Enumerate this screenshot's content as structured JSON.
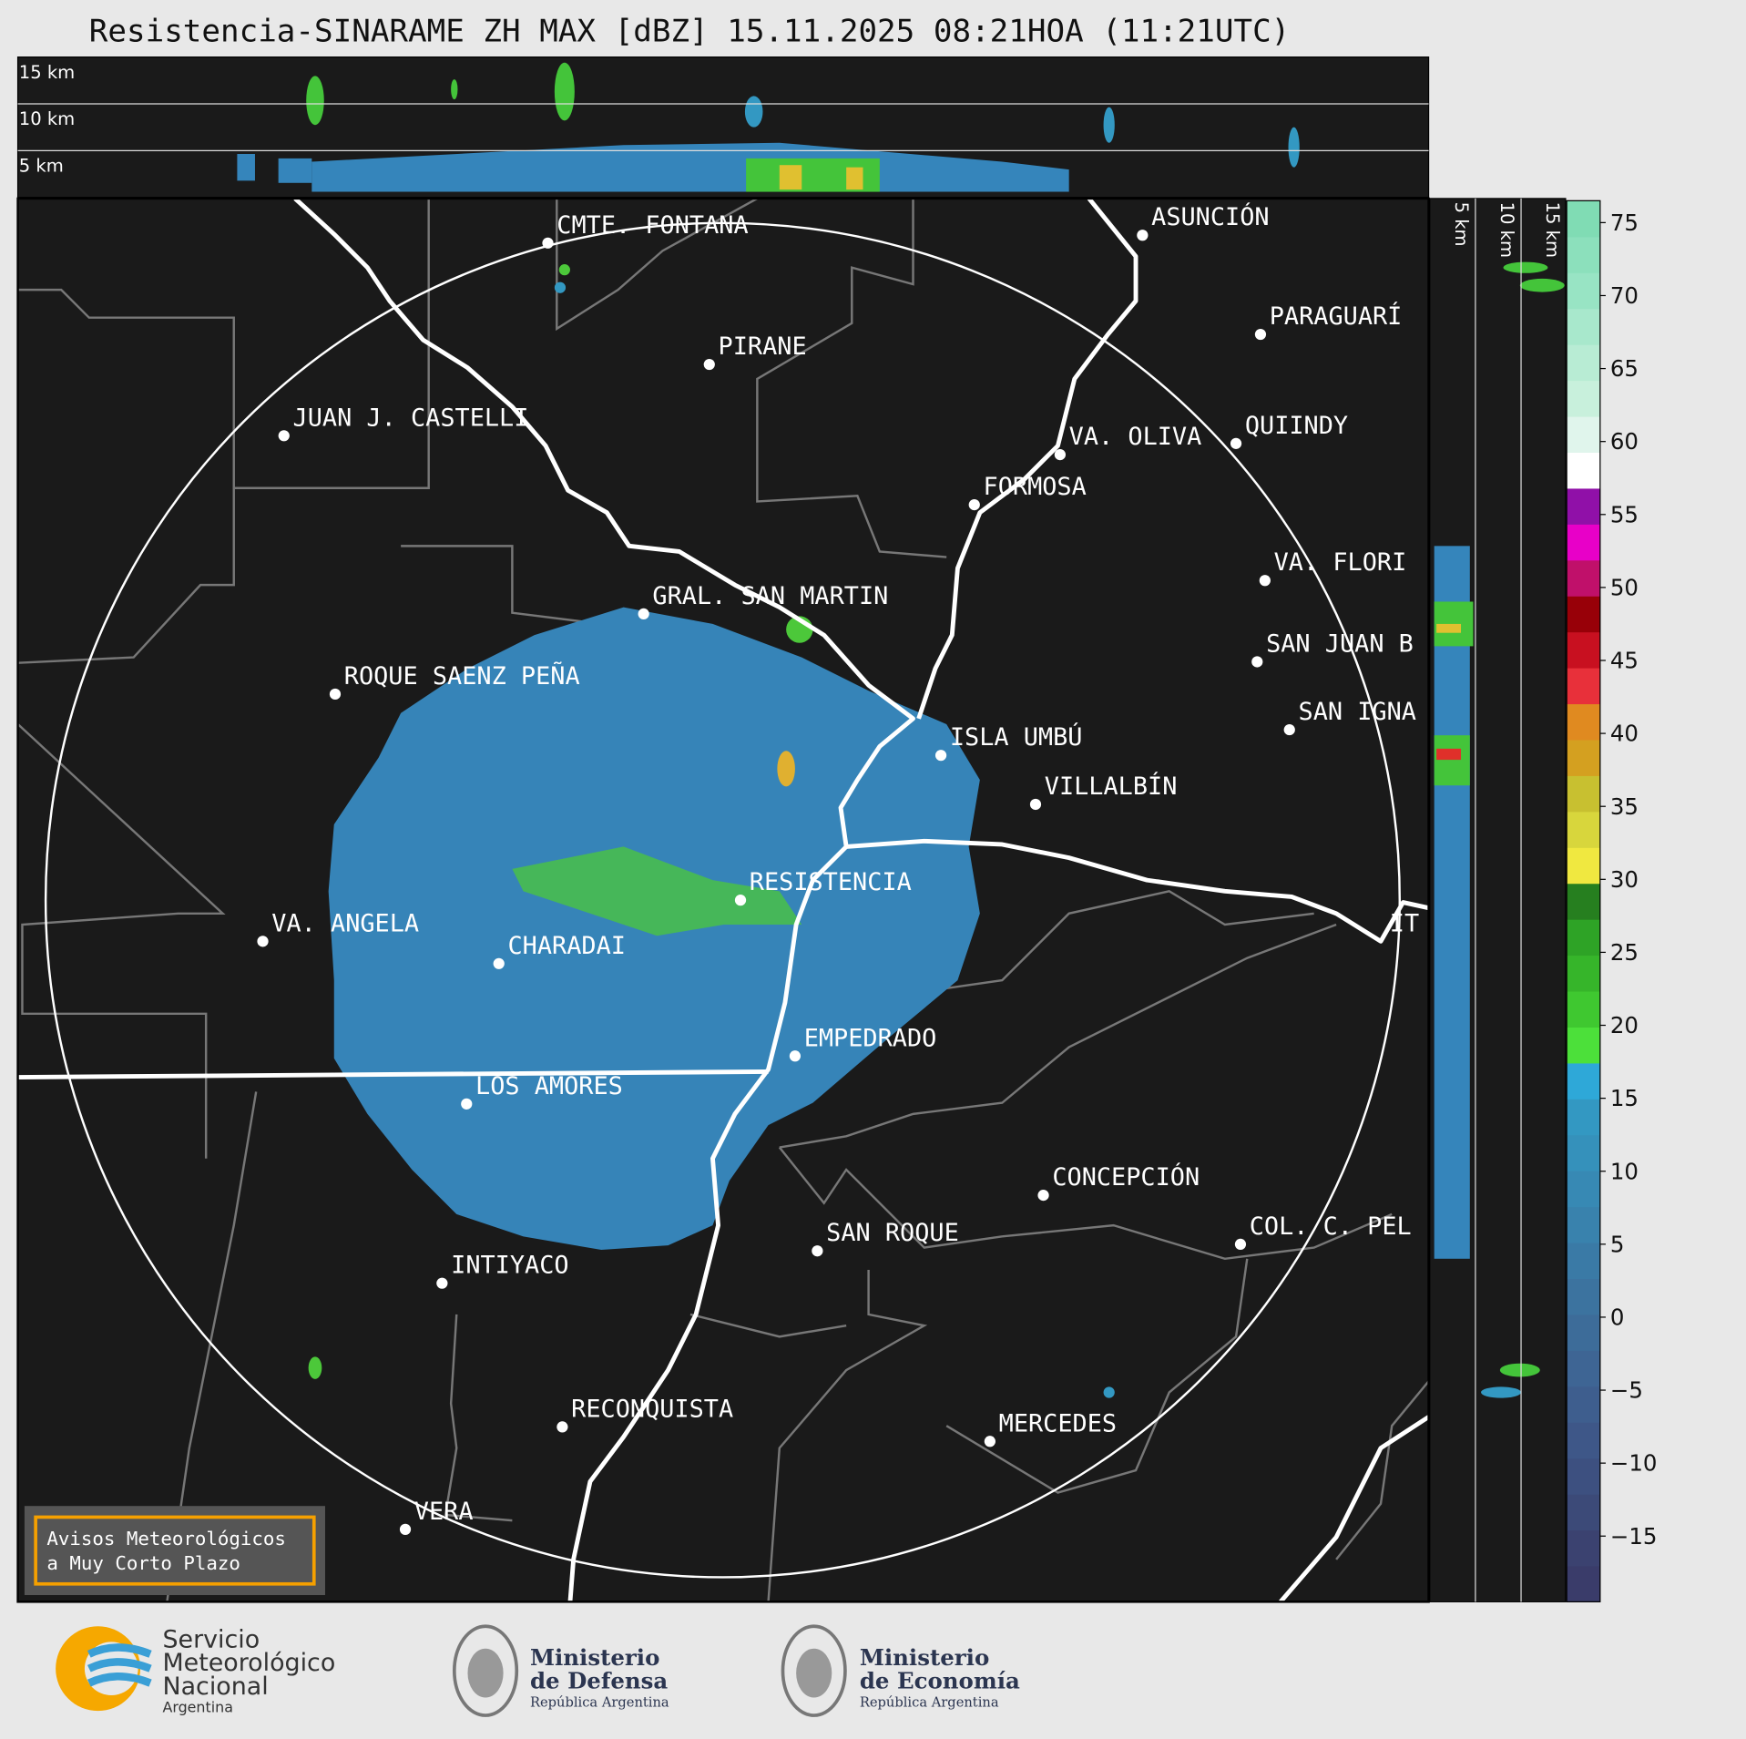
{
  "title": "Resistencia-SINARAME ZH MAX [dBZ] 15.11.2025 08:21HOA (11:21UTC)",
  "top_section_labels": [
    "15 km",
    "10 km",
    "5 km"
  ],
  "side_section_labels": [
    "5 km",
    "10 km",
    "15 km"
  ],
  "cities": [
    "CMTE. FONTANA",
    "PIRANE",
    "JUAN J. CASTELLI",
    "GRAL. SAN MARTIN",
    "ROQUE SAENZ PEÑA",
    "ASUNCIÓN",
    "PARAGUARÍ",
    "VA. OLIVA",
    "QUIINDY",
    "FORMOSA",
    "VA. FLORI",
    "SAN JUAN B",
    "SAN IGNA",
    "ISLA UMBÚ",
    "VILLALBÍN",
    "RESISTENCIA",
    "VA. ANGELA",
    "CHARADAI",
    "IT",
    "EMPEDRADO",
    "LOS AMORES",
    "CONCEPCIÓN",
    "SAN ROQUE",
    "COL. C. PEL",
    "INTIYACO",
    "RECONQUISTA",
    "MERCEDES",
    "VERA"
  ],
  "colorbar": {
    "range": [
      -19.5,
      76.5
    ],
    "ticks": [
      75,
      70,
      65,
      60,
      55,
      50,
      45,
      40,
      35,
      30,
      25,
      20,
      15,
      10,
      5,
      0,
      {
        "value": -5,
        "label": "−5"
      },
      {
        "value": -10,
        "label": "−10"
      },
      {
        "value": -15,
        "label": "−15"
      }
    ]
  },
  "warning_box": [
    "Avisos Meteorológicos",
    "a Muy Corto Plazo"
  ],
  "footer": {
    "smn": [
      "Servicio",
      "Meteorológico",
      "Nacional",
      "Argentina"
    ],
    "defensa": [
      "Ministerio",
      "de Defensa",
      "República Argentina"
    ],
    "economia": [
      "Ministerio",
      "de Economía",
      "República Argentina"
    ]
  }
}
